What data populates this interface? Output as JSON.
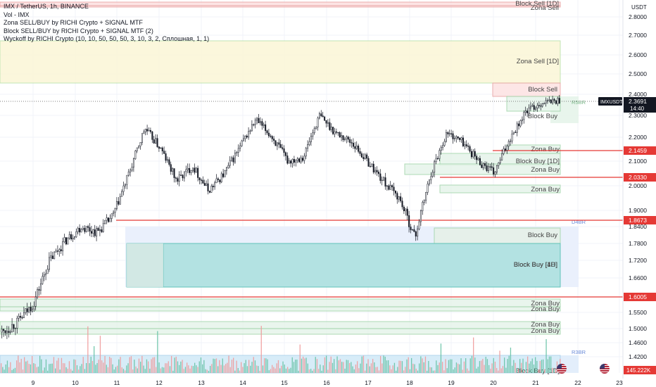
{
  "legend": {
    "line1": "IMX / TetherUS, 1h, BINANCE",
    "line2": "Vol - IMX",
    "line3": "Zona SELL/BUY by RICHI Crypto + SIGNAL MTF",
    "line4": "Block SELL/BUY by RICHI Crypto + SIGNAL MTF (2)",
    "line5": "Wyckoff by RICHI Crypto  (10, 10, 50, 50, 50, 3, 10, 3, 2, Сплошная, 1, 1)"
  },
  "price_axis": {
    "currency": "USDT",
    "ticks": [
      "2.8000",
      "2.7000",
      "2.6000",
      "2.5000",
      "2.4000",
      "2.3000",
      "2.2000",
      "2.1000",
      "2.0000",
      "1.9000",
      "1.8400",
      "1.7800",
      "1.7200",
      "1.6600",
      "1.5500",
      "1.5000",
      "1.4600",
      "1.4200"
    ],
    "symbol_badge": "IMXUSDT",
    "price_badge": "2.3691",
    "countdown": "14:40",
    "volume_badge": "145.222K"
  },
  "time_axis": {
    "ticks": [
      "9",
      "10",
      "11",
      "12",
      "13",
      "14",
      "15",
      "16",
      "17",
      "18",
      "19",
      "20",
      "21",
      "22",
      "23"
    ]
  },
  "level_lines": [
    {
      "value": "2.1459",
      "color": "#e53935"
    },
    {
      "value": "2.0330",
      "color": "#e53935"
    },
    {
      "value": "1.8673",
      "color": "#e53935"
    },
    {
      "value": "1.6005",
      "color": "#e53935"
    }
  ],
  "zones": [
    {
      "label": "Block Sell [1D]",
      "fill": "#fde0e0",
      "border": "#e8a0a0"
    },
    {
      "label": "Zona Sell",
      "fill": "#fde0e0",
      "border": "#e8a0a0"
    },
    {
      "label": "Zona Sell [1D]",
      "fill": "#fbf6d6",
      "border": "#b8e0a8"
    },
    {
      "label": "Block Sell",
      "fill": "#fde2e2",
      "border": "#e8a0a0"
    },
    {
      "label": "Block Buy",
      "fill": "#e6f4ea",
      "border": "#9fd4a8"
    },
    {
      "label": "Zona Buy",
      "fill": "#e6f4ea",
      "border": "#9fd4a8"
    },
    {
      "label": "Block Buy [1D]",
      "fill": "#e6f4ea",
      "border": "#9fd4a8"
    },
    {
      "label": "Zona Buy",
      "fill": "#e6f4ea",
      "border": "#9fd4a8"
    },
    {
      "label": "Zona Buy",
      "fill": "#e6f4ea",
      "border": "#9fd4a8"
    },
    {
      "label": "Block Buy",
      "fill": "#e6f0e8",
      "border": "#9fd4a8"
    },
    {
      "label": "Block Buy [1D]",
      "fill": "#b2e2e2",
      "border": "#5fc3b8"
    },
    {
      "label": "Block Buy [4H]",
      "fill": "#b2e2e2",
      "border": "#5fc3b8"
    },
    {
      "label": "Zona Buy",
      "fill": "#e6f4ea",
      "border": "#9fd4a8"
    },
    {
      "label": "Zona Buy",
      "fill": "#e6f4ea",
      "border": "#9fd4a8"
    },
    {
      "label": "Zona Buy",
      "fill": "#e6f4ea",
      "border": "#9fd4a8"
    },
    {
      "label": "Zona Buy",
      "fill": "#e6f4ea",
      "border": "#9fd4a8"
    },
    {
      "label": "Block Buy [1D]",
      "fill": "#d6ecf8",
      "border": "#a8d0ea"
    }
  ],
  "wyckoff_labels": [
    {
      "label": "R5BR",
      "color": "#7cb88a"
    },
    {
      "label": "D4BR",
      "color": "#6a8bd8"
    },
    {
      "label": "R3BR",
      "color": "#6a8bd8"
    }
  ],
  "colors": {
    "up": "#131722",
    "down": "#131722",
    "vol_up": "#66c2a5",
    "vol_down": "#ef9a9a",
    "axis_text": "#131722",
    "grid": "#f0f3fa"
  },
  "chart_data": {
    "type": "candlestick",
    "symbol": "IMX / TetherUS",
    "interval": "1h",
    "exchange": "BINANCE",
    "ylim": [
      1.4,
      2.85
    ],
    "x": [
      "9",
      "10",
      "11",
      "12",
      "13",
      "14",
      "15",
      "16",
      "17",
      "18",
      "19",
      "20",
      "21"
    ],
    "close_path": [
      1.49,
      1.52,
      1.58,
      1.72,
      1.79,
      1.84,
      1.82,
      1.88,
      2.05,
      2.24,
      2.15,
      2.02,
      2.08,
      1.98,
      2.05,
      2.16,
      2.28,
      2.2,
      2.1,
      2.12,
      2.3,
      2.22,
      2.18,
      2.1,
      2.02,
      1.95,
      1.8,
      2.05,
      2.22,
      2.18,
      2.1,
      2.05,
      2.2,
      2.32,
      2.36,
      2.37
    ],
    "last_price": 2.3691
  }
}
